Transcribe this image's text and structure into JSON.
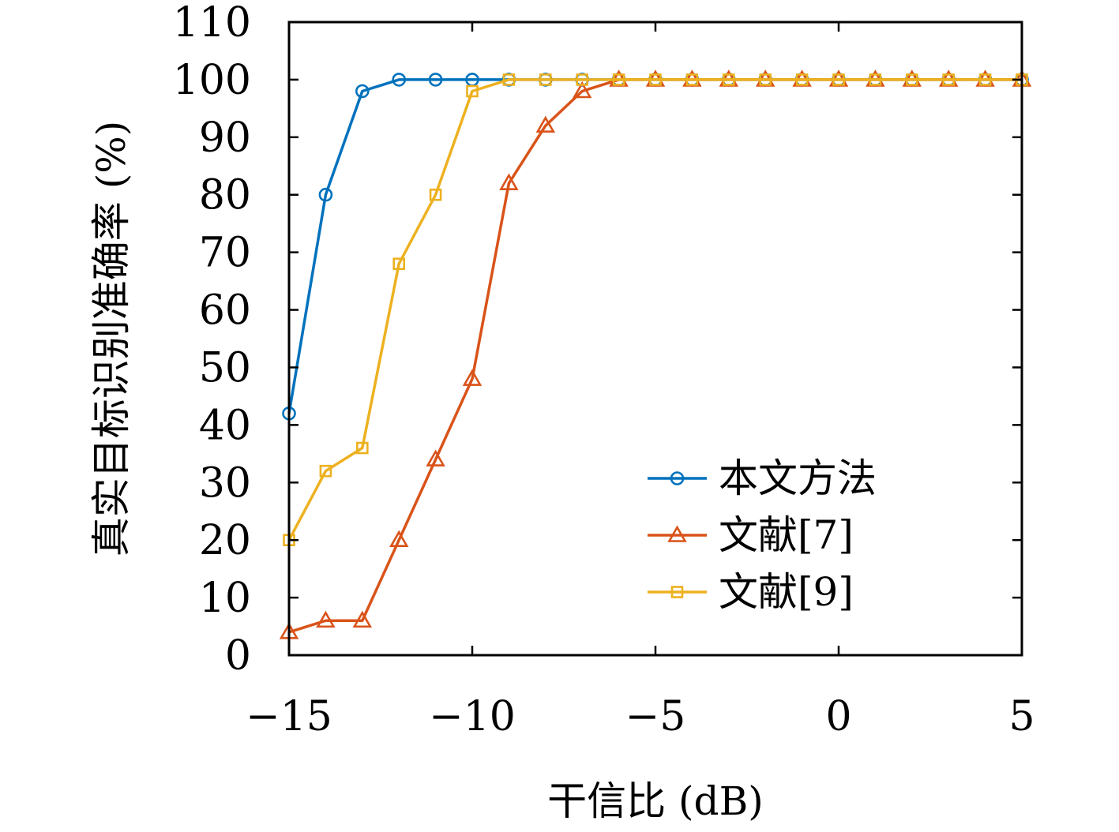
{
  "chart_data": {
    "type": "line",
    "xlabel": "干信比 (dB)",
    "ylabel": "真实目标识别准确率 (%)",
    "xlim": [
      -15,
      5
    ],
    "ylim": [
      0,
      110
    ],
    "xticks": [
      -15,
      -10,
      -5,
      0,
      5
    ],
    "xtick_labels": [
      "−15",
      "−10",
      "−5",
      "0",
      "5"
    ],
    "yticks": [
      0,
      10,
      20,
      30,
      40,
      50,
      60,
      70,
      80,
      90,
      100,
      110
    ],
    "grid": false,
    "legend_position": "bottom-right",
    "x": [
      -15,
      -14,
      -13,
      -12,
      -11,
      -10,
      -9,
      -8,
      -7,
      -6,
      -5,
      -4,
      -3,
      -2,
      -1,
      0,
      1,
      2,
      3,
      4,
      5
    ],
    "series": [
      {
        "name": "本文方法",
        "color": "#0072BD",
        "marker": "circle",
        "values": [
          42,
          80,
          98,
          100,
          100,
          100,
          100,
          100,
          100,
          100,
          100,
          100,
          100,
          100,
          100,
          100,
          100,
          100,
          100,
          100,
          100
        ]
      },
      {
        "name": "文献[7]",
        "color": "#D95319",
        "marker": "triangle",
        "values": [
          4,
          6,
          6,
          20,
          34,
          48,
          82,
          92,
          98,
          100,
          100,
          100,
          100,
          100,
          100,
          100,
          100,
          100,
          100,
          100,
          100
        ]
      },
      {
        "name": "文献[9]",
        "color": "#EDB120",
        "marker": "square",
        "values": [
          20,
          32,
          36,
          68,
          80,
          98,
          100,
          100,
          100,
          100,
          100,
          100,
          100,
          100,
          100,
          100,
          100,
          100,
          100,
          100,
          100
        ]
      }
    ]
  }
}
